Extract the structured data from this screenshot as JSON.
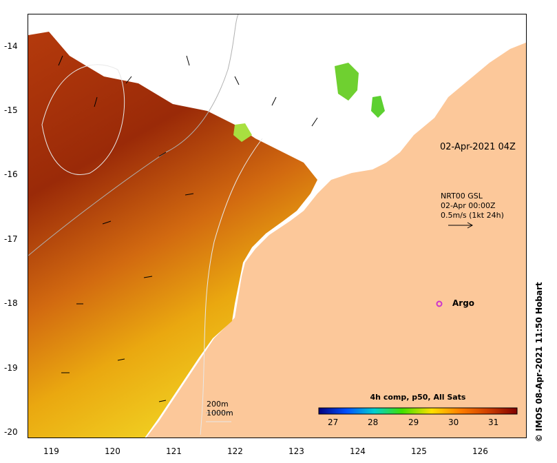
{
  "map": {
    "timestamp": "02-Apr-2021 04Z",
    "x_ticks": [
      "119",
      "120",
      "121",
      "122",
      "123",
      "124",
      "125",
      "126"
    ],
    "y_ticks": [
      "-14",
      "-15",
      "-16",
      "-17",
      "-18",
      "-19",
      "-20"
    ],
    "land_color": "#fcc89a",
    "argo_color": "#cc33cc"
  },
  "current_legend": {
    "line1": "NRT00 GSL",
    "line2": "02-Apr 00:00Z",
    "line3": "0.5m/s (1kt 24h)"
  },
  "argo": {
    "label": "Argo"
  },
  "contours": {
    "label1": "200m",
    "label2": "1000m"
  },
  "colorbar": {
    "title": "4h comp, p50, All Sats",
    "ticks": [
      "27",
      "28",
      "29",
      "30",
      "31"
    ],
    "colors": [
      "#00007f",
      "#0050ff",
      "#00d0d0",
      "#40e000",
      "#ffe000",
      "#ff8000",
      "#d04000",
      "#800000"
    ]
  },
  "credit": "© IMOS 08-Apr-2021 11:50 Hobart"
}
